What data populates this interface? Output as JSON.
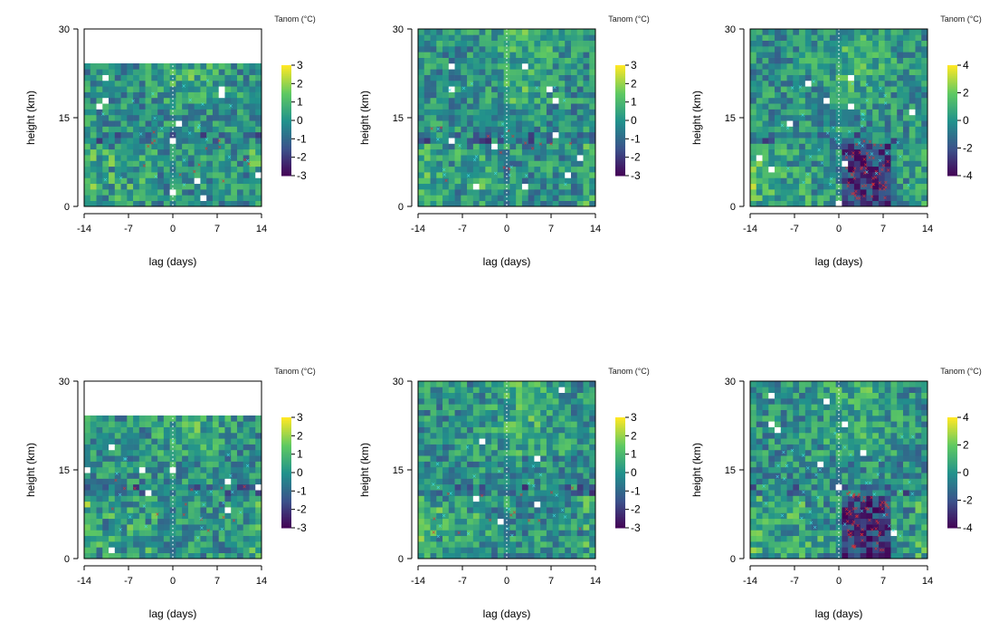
{
  "chart_data": [
    {
      "type": "heatmap",
      "xlabel": "lag (days)",
      "ylabel": "height (km)",
      "x_ticks": [
        "-14",
        "-7",
        "0",
        "7",
        "14"
      ],
      "y_ticks": [
        "0",
        "15",
        "30"
      ],
      "xlim": [
        -14,
        14
      ],
      "ylim": [
        0,
        30
      ],
      "data_top": 24.5,
      "colorbar": {
        "title": "Tanom (°C)",
        "ticks": [
          "3",
          "2",
          "1",
          "0",
          "-1",
          "-2",
          "-3"
        ],
        "range": [
          -3,
          3
        ]
      },
      "seed": 11
    },
    {
      "type": "heatmap",
      "xlabel": "lag (days)",
      "ylabel": "height (km)",
      "x_ticks": [
        "-14",
        "-7",
        "0",
        "7",
        "14"
      ],
      "y_ticks": [
        "0",
        "15",
        "30"
      ],
      "xlim": [
        -14,
        14
      ],
      "ylim": [
        0,
        30
      ],
      "data_top": 30,
      "colorbar": {
        "title": "Tanom (°C)",
        "ticks": [
          "3",
          "2",
          "1",
          "0",
          "-1",
          "-2",
          "-3"
        ],
        "range": [
          -3,
          3
        ]
      },
      "seed": 23
    },
    {
      "type": "heatmap",
      "xlabel": "lag (days)",
      "ylabel": "height (km)",
      "x_ticks": [
        "-14",
        "-7",
        "0",
        "7",
        "14"
      ],
      "y_ticks": [
        "0",
        "15",
        "30"
      ],
      "xlim": [
        -14,
        14
      ],
      "ylim": [
        0,
        30
      ],
      "data_top": 30,
      "colorbar": {
        "title": "Tanom (°C)",
        "ticks": [
          "4",
          "2",
          "0",
          "-2",
          "-4"
        ],
        "range": [
          -4,
          4
        ]
      },
      "seed": 37
    },
    {
      "type": "heatmap",
      "xlabel": "lag (days)",
      "ylabel": "height (km)",
      "x_ticks": [
        "-14",
        "-7",
        "0",
        "7",
        "14"
      ],
      "y_ticks": [
        "0",
        "15",
        "30"
      ],
      "xlim": [
        -14,
        14
      ],
      "ylim": [
        0,
        30
      ],
      "data_top": 24.5,
      "colorbar": {
        "title": "Tanom (°C)",
        "ticks": [
          "3",
          "2",
          "1",
          "0",
          "-1",
          "-2",
          "-3"
        ],
        "range": [
          -3,
          3
        ]
      },
      "seed": 41
    },
    {
      "type": "heatmap",
      "xlabel": "lag (days)",
      "ylabel": "height (km)",
      "x_ticks": [
        "-14",
        "-7",
        "0",
        "7",
        "14"
      ],
      "y_ticks": [
        "0",
        "15",
        "30"
      ],
      "xlim": [
        -14,
        14
      ],
      "ylim": [
        0,
        30
      ],
      "data_top": 30,
      "colorbar": {
        "title": "Tanom (°C)",
        "ticks": [
          "3",
          "2",
          "1",
          "0",
          "-1",
          "-2",
          "-3"
        ],
        "range": [
          -3,
          3
        ]
      },
      "seed": 53
    },
    {
      "type": "heatmap",
      "xlabel": "lag (days)",
      "ylabel": "height (km)",
      "x_ticks": [
        "-14",
        "-7",
        "0",
        "7",
        "14"
      ],
      "y_ticks": [
        "0",
        "15",
        "30"
      ],
      "xlim": [
        -14,
        14
      ],
      "ylim": [
        0,
        30
      ],
      "data_top": 30,
      "colorbar": {
        "title": "Tanom (°C)",
        "ticks": [
          "4",
          "2",
          "0",
          "-2",
          "-4"
        ],
        "range": [
          -4,
          4
        ]
      },
      "seed": 67
    }
  ],
  "colors": {
    "palette": [
      "#440154",
      "#3b528b",
      "#21918c",
      "#5ec962",
      "#fde725"
    ],
    "significant_cold": "#e03030",
    "significant_warm": "#40e0e8",
    "zero_lag_line": "#ffffff"
  }
}
